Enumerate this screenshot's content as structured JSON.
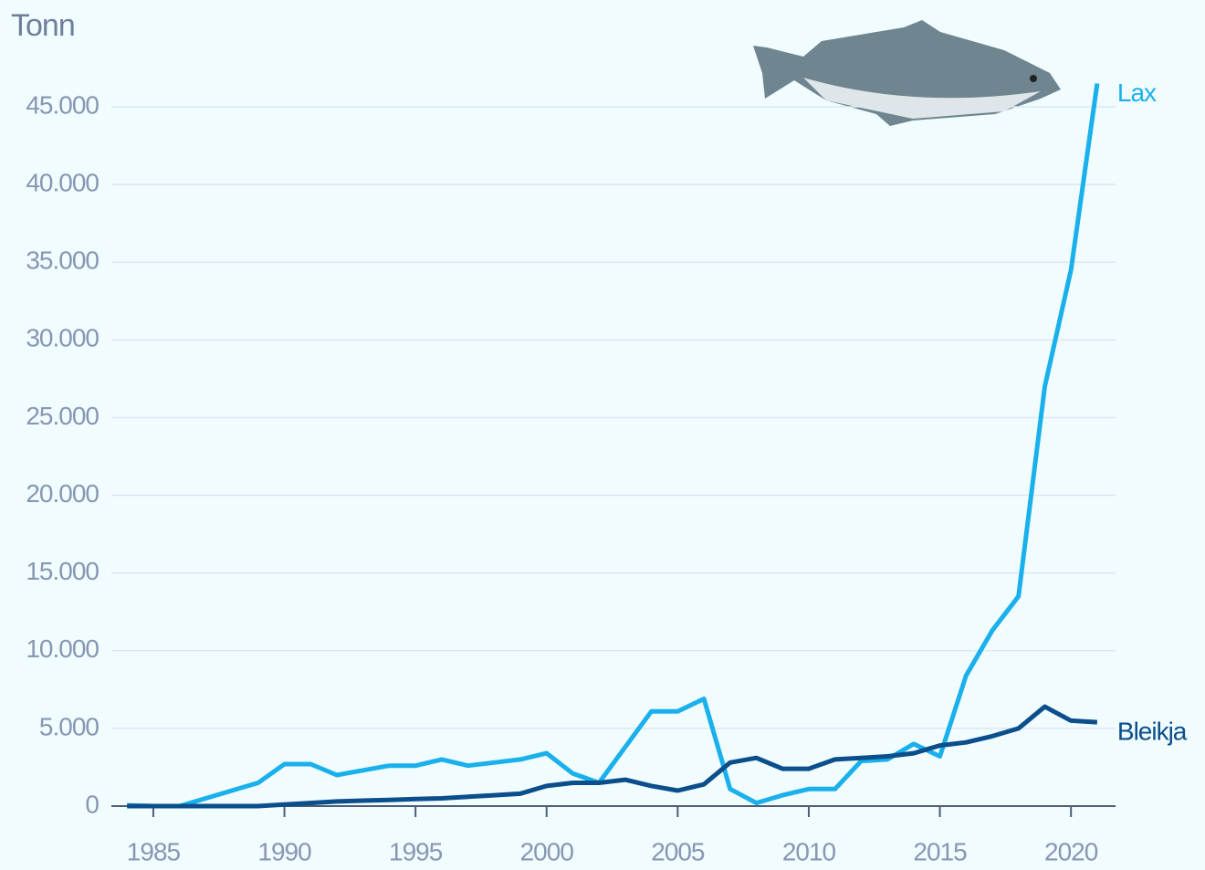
{
  "chart_data": {
    "type": "line",
    "y_label": "Tonn",
    "x": [
      1984,
      1985,
      1986,
      1987,
      1988,
      1989,
      1990,
      1991,
      1992,
      1993,
      1994,
      1995,
      1996,
      1997,
      1998,
      1999,
      2000,
      2001,
      2002,
      2003,
      2004,
      2005,
      2006,
      2007,
      2008,
      2009,
      2010,
      2011,
      2012,
      2013,
      2014,
      2015,
      2016,
      2017,
      2018,
      2019,
      2020,
      2021
    ],
    "series": [
      {
        "name": "Lax",
        "color": "#19b0ec",
        "values": [
          50,
          0,
          0,
          500,
          1000,
          1500,
          2700,
          2700,
          2000,
          2300,
          2600,
          2600,
          3000,
          2600,
          2800,
          3000,
          3400,
          2100,
          1500,
          3800,
          6100,
          6100,
          6900,
          1100,
          200,
          700,
          1100,
          1100,
          2900,
          3000,
          4000,
          3200,
          8400,
          11300,
          13500,
          27000,
          34500,
          46500
        ]
      },
      {
        "name": "Bleikja",
        "color": "#0b4e8c",
        "values": [
          0,
          0,
          0,
          0,
          0,
          0,
          100,
          200,
          300,
          350,
          400,
          450,
          500,
          600,
          700,
          800,
          1300,
          1500,
          1500,
          1700,
          1300,
          1000,
          1400,
          2800,
          3100,
          2400,
          2400,
          3000,
          3100,
          3200,
          3400,
          3900,
          4100,
          4500,
          5000,
          6400,
          5500,
          5400
        ]
      }
    ],
    "xlim": [
      1983.4,
      2021.7
    ],
    "ylim": [
      0,
      45000
    ],
    "xticks": [
      1985,
      1990,
      1995,
      2000,
      2005,
      2010,
      2015,
      2020
    ],
    "yticks": [
      0,
      {
        "value": 5000,
        "label": "5.000"
      },
      {
        "value": 10000,
        "label": "10.000"
      },
      {
        "value": 15000,
        "label": "15.000"
      },
      {
        "value": 20000,
        "label": "20.000"
      },
      {
        "value": 25000,
        "label": "25.000"
      },
      {
        "value": 30000,
        "label": "30.000"
      },
      {
        "value": 35000,
        "label": "35.000"
      },
      {
        "value": 40000,
        "label": "40.000"
      },
      {
        "value": 45000,
        "label": "45.000"
      }
    ],
    "grid": true
  }
}
